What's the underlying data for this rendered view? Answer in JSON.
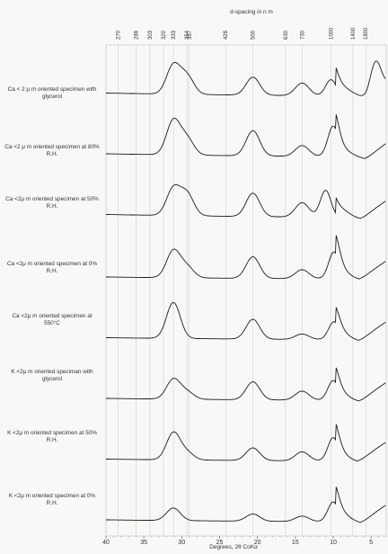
{
  "chart_data": {
    "type": "line",
    "title": "d-spacing in n m",
    "xlabel": "Degrees, 2θ CoKα",
    "x_direction": "reversed",
    "xlim": [
      40,
      3
    ],
    "x_ticks": [
      40,
      35,
      30,
      25,
      20,
      15,
      10,
      5
    ],
    "top_axis_ticks": [
      {
        "label": "270",
        "two_theta": 38.4
      },
      {
        "label": "288",
        "two_theta": 36.0
      },
      {
        "label": "303",
        "two_theta": 34.2
      },
      {
        "label": "320",
        "two_theta": 32.4
      },
      {
        "label": "333",
        "two_theta": 31.1
      },
      {
        "label": "354",
        "two_theta": 29.3
      },
      {
        "label": "357",
        "two_theta": 29.0
      },
      {
        "label": "428",
        "two_theta": 24.2
      },
      {
        "label": "500",
        "two_theta": 20.6
      },
      {
        "label": "630",
        "two_theta": 16.3
      },
      {
        "label": "730",
        "two_theta": 14.1
      },
      {
        "label": "1000",
        "two_theta": 10.3
      },
      {
        "label": "1400",
        "two_theta": 7.4
      },
      {
        "label": "1800",
        "two_theta": 5.7
      }
    ],
    "series": [
      {
        "name": "Ca < 2 μ m oriented specimen with glycerol",
        "peaks": [
          {
            "x": 31.1,
            "h": 32
          },
          {
            "x": 29.3,
            "h": 20
          },
          {
            "x": 20.6,
            "h": 20
          },
          {
            "x": 14.1,
            "h": 14
          },
          {
            "x": 10.3,
            "h": 18
          },
          {
            "x": 4.4,
            "h": 34
          }
        ],
        "background": 6,
        "low_angle_rise": 34,
        "low_angle_dip": 5.6
      },
      {
        "name": "Ca <2 μ m oriented specimen at 80% R.H.",
        "peaks": [
          {
            "x": 31.1,
            "h": 38
          },
          {
            "x": 29.3,
            "h": 18
          },
          {
            "x": 20.6,
            "h": 28
          },
          {
            "x": 14.1,
            "h": 12
          },
          {
            "x": 10.0,
            "h": 34
          }
        ],
        "background": 6,
        "low_angle_rise": 30,
        "low_angle_dip": 5.8
      },
      {
        "name": "Ca <2μ m oriented specimen at 50% R.H.",
        "peaks": [
          {
            "x": 31.1,
            "h": 30
          },
          {
            "x": 29.3,
            "h": 24
          },
          {
            "x": 20.6,
            "h": 26
          },
          {
            "x": 14.1,
            "h": 16
          },
          {
            "x": 11.0,
            "h": 30
          }
        ],
        "background": 6,
        "low_angle_rise": 30,
        "low_angle_dip": 6.4
      },
      {
        "name": "Ca <2μ m oriented specimen at 0% R.H.",
        "peaks": [
          {
            "x": 31.1,
            "h": 30
          },
          {
            "x": 29.3,
            "h": 12
          },
          {
            "x": 20.6,
            "h": 24
          },
          {
            "x": 14.1,
            "h": 10
          },
          {
            "x": 9.9,
            "h": 30
          }
        ],
        "background": 4,
        "low_angle_rise": 36,
        "low_angle_dip": 6.6
      },
      {
        "name": "Ca <2μ m oriented specimen at 550°C",
        "peaks": [
          {
            "x": 31.1,
            "h": 40
          },
          {
            "x": 20.6,
            "h": 22
          },
          {
            "x": 14.1,
            "h": 6
          },
          {
            "x": 9.9,
            "h": 20
          }
        ],
        "background": 4,
        "low_angle_rise": 30,
        "low_angle_dip": 6.6
      },
      {
        "name": "K <2μ m oriented speciman with glycerol",
        "peaks": [
          {
            "x": 31.1,
            "h": 22
          },
          {
            "x": 29.3,
            "h": 8
          },
          {
            "x": 20.6,
            "h": 20
          },
          {
            "x": 14.1,
            "h": 10
          },
          {
            "x": 10.0,
            "h": 22
          }
        ],
        "background": 4,
        "low_angle_rise": 30,
        "low_angle_dip": 6.6
      },
      {
        "name": "K <2μ m oriented specimen at 50% R.H.",
        "peaks": [
          {
            "x": 31.1,
            "h": 30
          },
          {
            "x": 29.3,
            "h": 8
          },
          {
            "x": 20.6,
            "h": 14
          },
          {
            "x": 14.1,
            "h": 10
          },
          {
            "x": 10.0,
            "h": 26
          }
        ],
        "background": 4,
        "low_angle_rise": 32,
        "low_angle_dip": 6.8
      },
      {
        "name": "K <2μ m oriented specimen at 0% R.H.",
        "peaks": [
          {
            "x": 31.1,
            "h": 14
          },
          {
            "x": 20.6,
            "h": 8
          },
          {
            "x": 14.1,
            "h": 6
          },
          {
            "x": 10.0,
            "h": 22
          }
        ],
        "background": 4,
        "low_angle_rise": 34,
        "low_angle_dip": 6.4
      }
    ],
    "grid": true,
    "colors": {
      "trace": "#1a1a1a",
      "grid": "#c8c8c8",
      "text": "#333333"
    }
  }
}
